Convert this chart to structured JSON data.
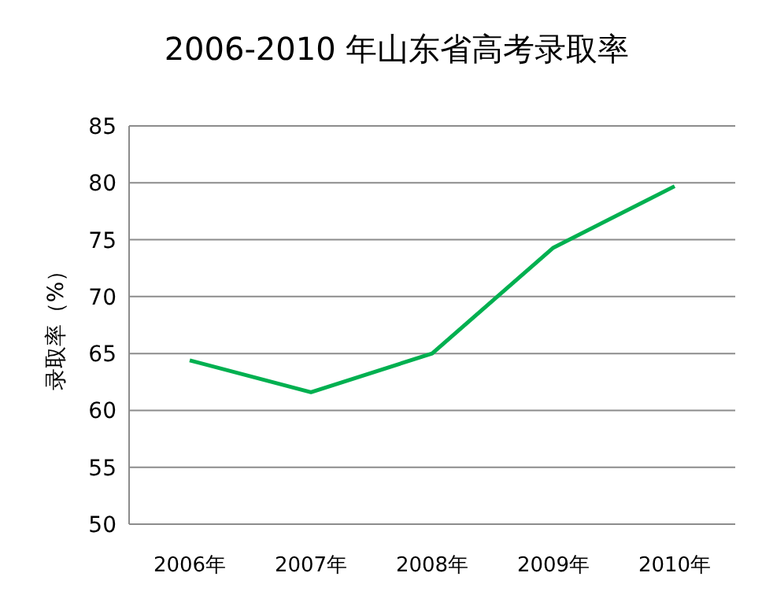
{
  "chart_data": {
    "type": "line",
    "title": "2006-2010 年山东省高考录取率",
    "ylabel": "录取率（%）",
    "categories": [
      "2006年",
      "2007年",
      "2008年",
      "2009年",
      "2010年"
    ],
    "series": [
      {
        "color": "#00b050",
        "values": [
          64.4,
          61.6,
          65.0,
          74.3,
          79.7
        ]
      }
    ],
    "ylim": [
      50,
      85
    ],
    "yticks": [
      50,
      55,
      60,
      65,
      70,
      75,
      80,
      85
    ],
    "grid": "y",
    "marker": "none",
    "line_style": "solid"
  }
}
